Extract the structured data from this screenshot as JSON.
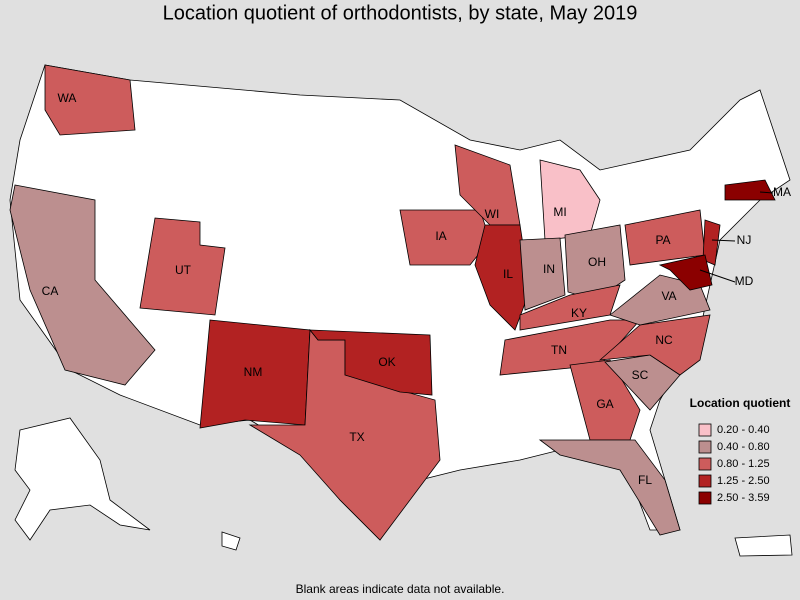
{
  "title": "Location quotient of orthodontists, by state, May 2019",
  "states": [
    {
      "label": "WA",
      "color": "#cd5c5c"
    },
    {
      "label": "CA",
      "color": "#bc8f8f"
    },
    {
      "label": "UT",
      "color": "#cd5c5c"
    },
    {
      "label": "NM",
      "color": "#b22222"
    },
    {
      "label": "TX",
      "color": "#cd5c5c"
    },
    {
      "label": "OK",
      "color": "#b22222"
    },
    {
      "label": "IA",
      "color": "#cd5c5c"
    },
    {
      "label": "WI",
      "color": "#cd5c5c"
    },
    {
      "label": "IL",
      "color": "#b22222"
    },
    {
      "label": "MI",
      "color": "#f9c0c8"
    },
    {
      "label": "IN",
      "color": "#bc8f8f"
    },
    {
      "label": "OH",
      "color": "#bc8f8f"
    },
    {
      "label": "KY",
      "color": "#cd5c5c"
    },
    {
      "label": "TN",
      "color": "#cd5c5c"
    },
    {
      "label": "GA",
      "color": "#cd5c5c"
    },
    {
      "label": "FL",
      "color": "#bc8f8f"
    },
    {
      "label": "SC",
      "color": "#bc8f8f"
    },
    {
      "label": "NC",
      "color": "#cd5c5c"
    },
    {
      "label": "VA",
      "color": "#bc8f8f"
    },
    {
      "label": "PA",
      "color": "#cd5c5c"
    },
    {
      "label": "NJ",
      "color": "#b22222"
    },
    {
      "label": "MD",
      "color": "#8b0000"
    },
    {
      "label": "MA",
      "color": "#8b0000"
    }
  ],
  "legend": {
    "title": "Location quotient",
    "items": [
      {
        "label": "0.20 - 0.40",
        "color": "#f9c0c8"
      },
      {
        "label": "0.40 - 0.80",
        "color": "#bc8f8f"
      },
      {
        "label": "0.80 - 1.25",
        "color": "#cd5c5c"
      },
      {
        "label": "1.25 - 2.50",
        "color": "#b22222"
      },
      {
        "label": "2.50 - 3.59",
        "color": "#8b0000"
      }
    ]
  },
  "note": "Blank areas indicate data not available."
}
